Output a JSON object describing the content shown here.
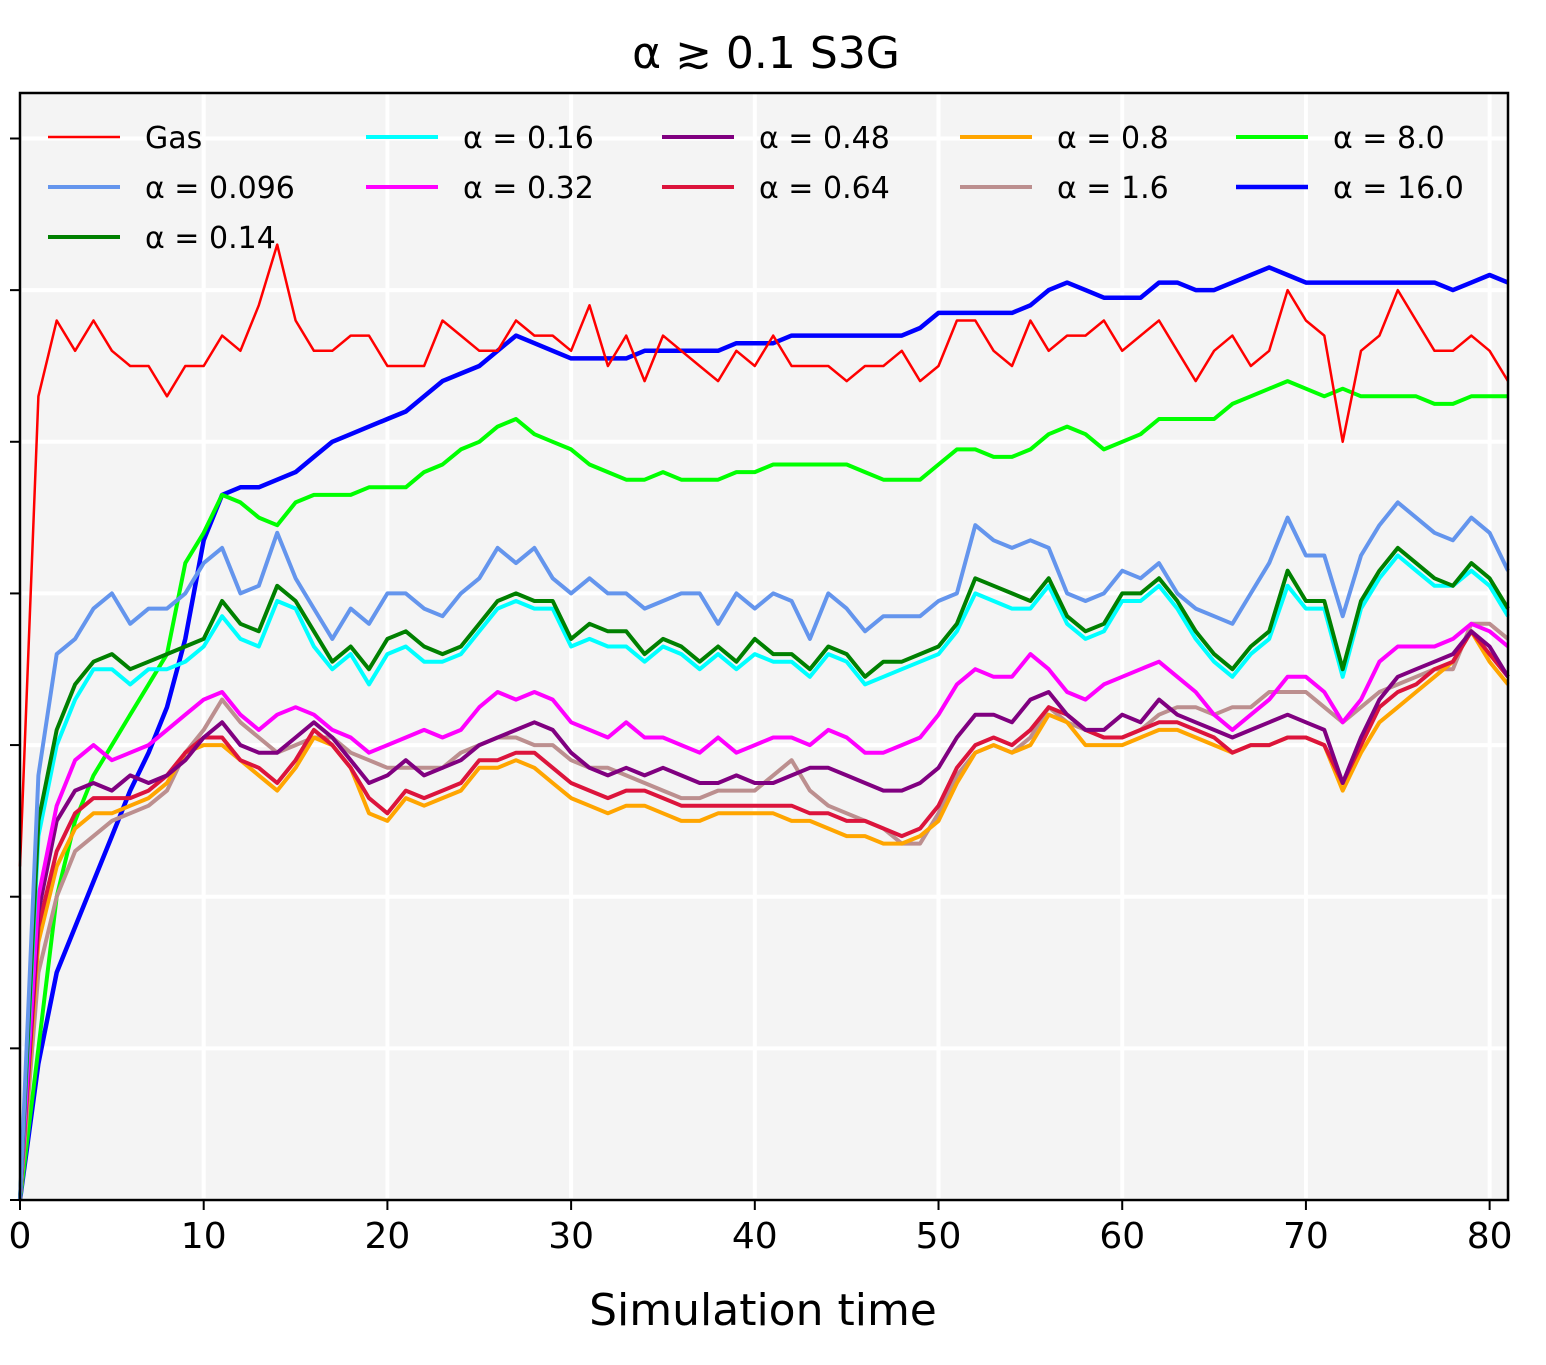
{
  "chart_data": {
    "type": "line",
    "title": "α ≳ 0.1 S3G",
    "xlabel": "Simulation time",
    "ylabel": "",
    "xlim": [
      0,
      81
    ],
    "ylim": [
      0,
      7.3
    ],
    "xticks": [
      0,
      10,
      20,
      30,
      40,
      50,
      60,
      70,
      80
    ],
    "yticks": [
      0,
      1,
      2,
      3,
      4,
      5,
      6,
      7
    ],
    "yticklabels_shown": false,
    "grid": true,
    "legend": {
      "placement": "top",
      "columns": 5
    },
    "x": [
      0,
      1,
      2,
      3,
      4,
      5,
      6,
      7,
      8,
      9,
      10,
      11,
      12,
      13,
      14,
      15,
      16,
      17,
      18,
      19,
      20,
      21,
      22,
      23,
      24,
      25,
      26,
      27,
      28,
      29,
      30,
      31,
      32,
      33,
      34,
      35,
      36,
      37,
      38,
      39,
      40,
      41,
      42,
      43,
      44,
      45,
      46,
      47,
      48,
      49,
      50,
      51,
      52,
      53,
      54,
      55,
      56,
      57,
      58,
      59,
      60,
      61,
      62,
      63,
      64,
      65,
      66,
      67,
      68,
      69,
      70,
      71,
      72,
      73,
      74,
      75,
      76,
      77,
      78,
      79,
      80,
      81
    ],
    "series": [
      {
        "name": "Gas",
        "color": "#ff0000",
        "width": 2.5,
        "values": [
          2.2,
          5.3,
          5.8,
          5.6,
          5.8,
          5.6,
          5.5,
          5.5,
          5.3,
          5.5,
          5.5,
          5.7,
          5.6,
          5.9,
          6.3,
          5.8,
          5.6,
          5.6,
          5.7,
          5.7,
          5.5,
          5.5,
          5.5,
          5.8,
          5.7,
          5.6,
          5.6,
          5.8,
          5.7,
          5.7,
          5.6,
          5.9,
          5.5,
          5.7,
          5.4,
          5.7,
          5.6,
          5.5,
          5.4,
          5.6,
          5.5,
          5.7,
          5.5,
          5.5,
          5.5,
          5.4,
          5.5,
          5.5,
          5.6,
          5.4,
          5.5,
          5.8,
          5.8,
          5.6,
          5.5,
          5.8,
          5.6,
          5.7,
          5.7,
          5.8,
          5.6,
          5.7,
          5.8,
          5.6,
          5.4,
          5.6,
          5.7,
          5.5,
          5.6,
          6.0,
          5.8,
          5.7,
          5.0,
          5.6,
          5.7,
          6.0,
          5.8,
          5.6,
          5.6,
          5.7,
          5.6,
          5.4
        ]
      },
      {
        "name": "α = 0.096",
        "color": "#6495ed",
        "width": 4,
        "values": [
          0,
          2.8,
          3.6,
          3.7,
          3.9,
          4.0,
          3.8,
          3.9,
          3.9,
          4.0,
          4.2,
          4.3,
          4.0,
          4.05,
          4.4,
          4.1,
          3.9,
          3.7,
          3.9,
          3.8,
          4.0,
          4.0,
          3.9,
          3.85,
          4.0,
          4.1,
          4.3,
          4.2,
          4.3,
          4.1,
          4.0,
          4.1,
          4.0,
          4.0,
          3.9,
          3.95,
          4.0,
          4.0,
          3.8,
          4.0,
          3.9,
          4.0,
          3.95,
          3.7,
          4.0,
          3.9,
          3.75,
          3.85,
          3.85,
          3.85,
          3.95,
          4.0,
          4.45,
          4.35,
          4.3,
          4.35,
          4.3,
          4.0,
          3.95,
          4.0,
          4.15,
          4.1,
          4.2,
          4.0,
          3.9,
          3.85,
          3.8,
          4.0,
          4.2,
          4.5,
          4.25,
          4.25,
          3.85,
          4.25,
          4.45,
          4.6,
          4.5,
          4.4,
          4.35,
          4.5,
          4.4,
          4.15
        ]
      },
      {
        "name": "α = 0.14",
        "color": "#008000",
        "width": 4,
        "values": [
          0,
          2.5,
          3.1,
          3.4,
          3.55,
          3.6,
          3.5,
          3.55,
          3.6,
          3.65,
          3.7,
          3.95,
          3.8,
          3.75,
          4.05,
          3.95,
          3.75,
          3.55,
          3.65,
          3.5,
          3.7,
          3.75,
          3.65,
          3.6,
          3.65,
          3.8,
          3.95,
          4.0,
          3.95,
          3.95,
          3.7,
          3.8,
          3.75,
          3.75,
          3.6,
          3.7,
          3.65,
          3.55,
          3.65,
          3.55,
          3.7,
          3.6,
          3.6,
          3.5,
          3.65,
          3.6,
          3.45,
          3.55,
          3.55,
          3.6,
          3.65,
          3.8,
          4.1,
          4.05,
          4.0,
          3.95,
          4.1,
          3.85,
          3.75,
          3.8,
          4.0,
          4.0,
          4.1,
          3.95,
          3.75,
          3.6,
          3.5,
          3.65,
          3.75,
          4.15,
          3.95,
          3.95,
          3.5,
          3.95,
          4.15,
          4.3,
          4.2,
          4.1,
          4.05,
          4.2,
          4.1,
          3.9
        ]
      },
      {
        "name": "α = 0.16",
        "color": "#00ffff",
        "width": 4,
        "values": [
          0,
          2.4,
          3.0,
          3.3,
          3.5,
          3.5,
          3.4,
          3.5,
          3.5,
          3.55,
          3.65,
          3.85,
          3.7,
          3.65,
          3.95,
          3.9,
          3.65,
          3.5,
          3.6,
          3.4,
          3.6,
          3.65,
          3.55,
          3.55,
          3.6,
          3.75,
          3.9,
          3.95,
          3.9,
          3.9,
          3.65,
          3.7,
          3.65,
          3.65,
          3.55,
          3.65,
          3.6,
          3.5,
          3.6,
          3.5,
          3.6,
          3.55,
          3.55,
          3.45,
          3.6,
          3.55,
          3.4,
          3.45,
          3.5,
          3.55,
          3.6,
          3.75,
          4.0,
          3.95,
          3.9,
          3.9,
          4.05,
          3.8,
          3.7,
          3.75,
          3.95,
          3.95,
          4.05,
          3.9,
          3.7,
          3.55,
          3.45,
          3.6,
          3.7,
          4.05,
          3.9,
          3.9,
          3.45,
          3.9,
          4.1,
          4.25,
          4.15,
          4.05,
          4.05,
          4.15,
          4.05,
          3.85
        ]
      },
      {
        "name": "α = 0.32",
        "color": "#ff00ff",
        "width": 4,
        "values": [
          0,
          2.0,
          2.6,
          2.9,
          3.0,
          2.9,
          2.95,
          3.0,
          3.1,
          3.2,
          3.3,
          3.35,
          3.2,
          3.1,
          3.2,
          3.25,
          3.2,
          3.1,
          3.05,
          2.95,
          3.0,
          3.05,
          3.1,
          3.05,
          3.1,
          3.25,
          3.35,
          3.3,
          3.35,
          3.3,
          3.15,
          3.1,
          3.05,
          3.15,
          3.05,
          3.05,
          3.0,
          2.95,
          3.05,
          2.95,
          3.0,
          3.05,
          3.05,
          3.0,
          3.1,
          3.05,
          2.95,
          2.95,
          3.0,
          3.05,
          3.2,
          3.4,
          3.5,
          3.45,
          3.45,
          3.6,
          3.5,
          3.35,
          3.3,
          3.4,
          3.45,
          3.5,
          3.55,
          3.45,
          3.35,
          3.2,
          3.1,
          3.2,
          3.3,
          3.45,
          3.45,
          3.35,
          3.15,
          3.3,
          3.55,
          3.65,
          3.65,
          3.65,
          3.7,
          3.8,
          3.75,
          3.65
        ]
      },
      {
        "name": "α = 0.48",
        "color": "#800080",
        "width": 4,
        "values": [
          0,
          1.9,
          2.5,
          2.7,
          2.75,
          2.7,
          2.8,
          2.75,
          2.8,
          2.9,
          3.05,
          3.15,
          3.0,
          2.95,
          2.95,
          3.05,
          3.15,
          3.05,
          2.9,
          2.75,
          2.8,
          2.9,
          2.8,
          2.85,
          2.9,
          3.0,
          3.05,
          3.1,
          3.15,
          3.1,
          2.95,
          2.85,
          2.8,
          2.85,
          2.8,
          2.85,
          2.8,
          2.75,
          2.75,
          2.8,
          2.75,
          2.75,
          2.8,
          2.85,
          2.85,
          2.8,
          2.75,
          2.7,
          2.7,
          2.75,
          2.85,
          3.05,
          3.2,
          3.2,
          3.15,
          3.3,
          3.35,
          3.2,
          3.1,
          3.1,
          3.2,
          3.15,
          3.3,
          3.2,
          3.15,
          3.1,
          3.05,
          3.1,
          3.15,
          3.2,
          3.15,
          3.1,
          2.75,
          3.05,
          3.3,
          3.45,
          3.5,
          3.55,
          3.6,
          3.75,
          3.65,
          3.45
        ]
      },
      {
        "name": "α = 0.64",
        "color": "#dc143c",
        "width": 4,
        "values": [
          0,
          1.8,
          2.3,
          2.55,
          2.65,
          2.65,
          2.65,
          2.7,
          2.8,
          2.95,
          3.05,
          3.05,
          2.9,
          2.85,
          2.75,
          2.9,
          3.1,
          3.0,
          2.85,
          2.65,
          2.55,
          2.7,
          2.65,
          2.7,
          2.75,
          2.9,
          2.9,
          2.95,
          2.95,
          2.85,
          2.75,
          2.7,
          2.65,
          2.7,
          2.7,
          2.65,
          2.6,
          2.6,
          2.6,
          2.6,
          2.6,
          2.6,
          2.6,
          2.55,
          2.55,
          2.5,
          2.5,
          2.45,
          2.4,
          2.45,
          2.6,
          2.85,
          3.0,
          3.05,
          3.0,
          3.1,
          3.25,
          3.2,
          3.1,
          3.05,
          3.05,
          3.1,
          3.15,
          3.15,
          3.1,
          3.05,
          2.95,
          3.0,
          3.0,
          3.05,
          3.05,
          3.0,
          2.75,
          3.0,
          3.25,
          3.35,
          3.4,
          3.5,
          3.55,
          3.75,
          3.6,
          3.45
        ]
      },
      {
        "name": "α = 0.8",
        "color": "#ffa500",
        "width": 4,
        "values": [
          0,
          1.7,
          2.2,
          2.45,
          2.55,
          2.55,
          2.6,
          2.65,
          2.75,
          2.95,
          3.0,
          3.0,
          2.9,
          2.8,
          2.7,
          2.85,
          3.05,
          3.0,
          2.85,
          2.55,
          2.5,
          2.65,
          2.6,
          2.65,
          2.7,
          2.85,
          2.85,
          2.9,
          2.85,
          2.75,
          2.65,
          2.6,
          2.55,
          2.6,
          2.6,
          2.55,
          2.5,
          2.5,
          2.55,
          2.55,
          2.55,
          2.55,
          2.5,
          2.5,
          2.45,
          2.4,
          2.4,
          2.35,
          2.35,
          2.4,
          2.5,
          2.75,
          2.95,
          3.0,
          2.95,
          3.0,
          3.2,
          3.15,
          3.0,
          3.0,
          3.0,
          3.05,
          3.1,
          3.1,
          3.05,
          3.0,
          2.95,
          3.0,
          3.0,
          3.05,
          3.05,
          3.0,
          2.7,
          2.95,
          3.15,
          3.25,
          3.35,
          3.45,
          3.55,
          3.75,
          3.55,
          3.4
        ]
      },
      {
        "name": "α = 1.6",
        "color": "#bc8f8f",
        "width": 4,
        "values": [
          0,
          1.5,
          2.0,
          2.3,
          2.4,
          2.5,
          2.55,
          2.6,
          2.7,
          2.95,
          3.1,
          3.3,
          3.15,
          3.05,
          2.95,
          3.0,
          3.05,
          3.05,
          2.95,
          2.9,
          2.85,
          2.85,
          2.85,
          2.85,
          2.95,
          3.0,
          3.05,
          3.05,
          3.0,
          3.0,
          2.9,
          2.85,
          2.85,
          2.8,
          2.75,
          2.7,
          2.65,
          2.65,
          2.7,
          2.7,
          2.7,
          2.8,
          2.9,
          2.7,
          2.6,
          2.55,
          2.5,
          2.45,
          2.35,
          2.35,
          2.55,
          2.8,
          2.95,
          3.0,
          2.95,
          3.05,
          3.25,
          3.15,
          3.1,
          3.05,
          3.05,
          3.1,
          3.2,
          3.25,
          3.25,
          3.2,
          3.25,
          3.25,
          3.35,
          3.35,
          3.35,
          3.25,
          3.15,
          3.25,
          3.35,
          3.4,
          3.45,
          3.5,
          3.5,
          3.8,
          3.8,
          3.7
        ]
      },
      {
        "name": "α = 8.0",
        "color": "#00ff00",
        "width": 4,
        "values": [
          0,
          1.0,
          2.0,
          2.5,
          2.8,
          3.0,
          3.2,
          3.4,
          3.6,
          4.2,
          4.4,
          4.65,
          4.6,
          4.5,
          4.45,
          4.6,
          4.65,
          4.65,
          4.65,
          4.7,
          4.7,
          4.7,
          4.8,
          4.85,
          4.95,
          5.0,
          5.1,
          5.15,
          5.05,
          5.0,
          4.95,
          4.85,
          4.8,
          4.75,
          4.75,
          4.8,
          4.75,
          4.75,
          4.75,
          4.8,
          4.8,
          4.85,
          4.85,
          4.85,
          4.85,
          4.85,
          4.8,
          4.75,
          4.75,
          4.75,
          4.85,
          4.95,
          4.95,
          4.9,
          4.9,
          4.95,
          5.05,
          5.1,
          5.05,
          4.95,
          5.0,
          5.05,
          5.15,
          5.15,
          5.15,
          5.15,
          5.25,
          5.3,
          5.35,
          5.4,
          5.35,
          5.3,
          5.35,
          5.3,
          5.3,
          5.3,
          5.3,
          5.25,
          5.25,
          5.3,
          5.3,
          5.3
        ]
      },
      {
        "name": "α = 16.0",
        "color": "#0000ff",
        "width": 4.5,
        "values": [
          0,
          0.9,
          1.5,
          1.8,
          2.1,
          2.4,
          2.7,
          2.95,
          3.25,
          3.7,
          4.35,
          4.65,
          4.7,
          4.7,
          4.75,
          4.8,
          4.9,
          5.0,
          5.05,
          5.1,
          5.15,
          5.2,
          5.3,
          5.4,
          5.45,
          5.5,
          5.6,
          5.7,
          5.65,
          5.6,
          5.55,
          5.55,
          5.55,
          5.55,
          5.6,
          5.6,
          5.6,
          5.6,
          5.6,
          5.65,
          5.65,
          5.65,
          5.7,
          5.7,
          5.7,
          5.7,
          5.7,
          5.7,
          5.7,
          5.75,
          5.85,
          5.85,
          5.85,
          5.85,
          5.85,
          5.9,
          6.0,
          6.05,
          6.0,
          5.95,
          5.95,
          5.95,
          6.05,
          6.05,
          6.0,
          6.0,
          6.05,
          6.1,
          6.15,
          6.1,
          6.05,
          6.05,
          6.05,
          6.05,
          6.05,
          6.05,
          6.05,
          6.05,
          6.0,
          6.05,
          6.1,
          6.05
        ]
      }
    ]
  }
}
